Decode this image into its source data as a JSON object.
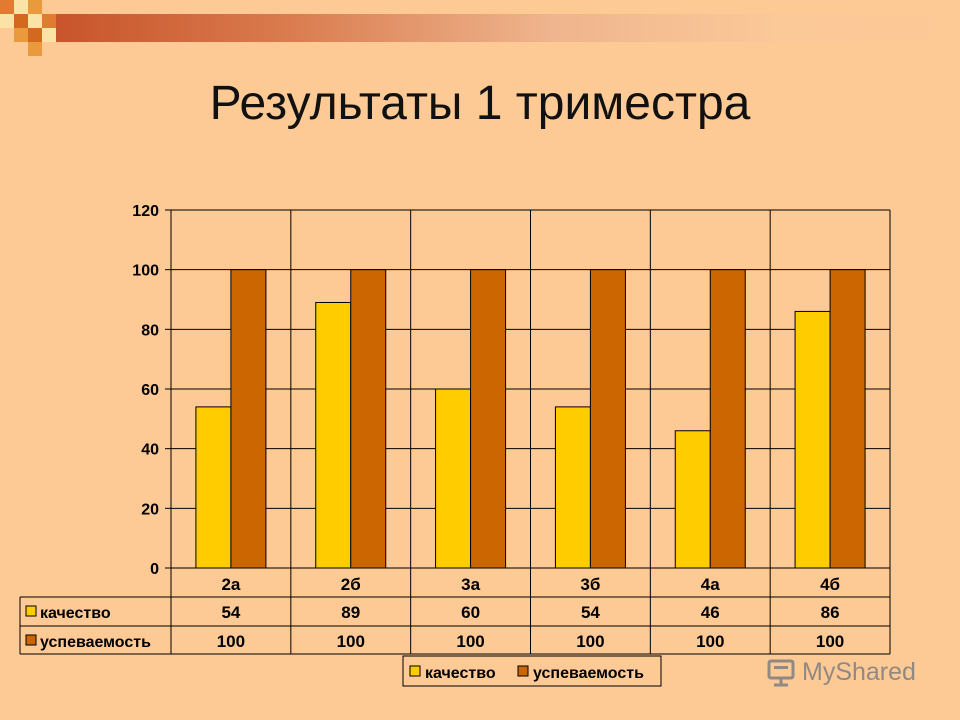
{
  "slide": {
    "title": "Результаты 1 триместра"
  },
  "chart_data": {
    "type": "bar",
    "categories": [
      "2а",
      "2б",
      "3а",
      "3б",
      "4а",
      "4б"
    ],
    "series": [
      {
        "name": "качество",
        "values": [
          54,
          89,
          60,
          54,
          46,
          86
        ],
        "color": "#ffcc00"
      },
      {
        "name": "успеваемость",
        "values": [
          100,
          100,
          100,
          100,
          100,
          100
        ],
        "color": "#cc6600"
      }
    ],
    "ylim": [
      0,
      120
    ],
    "yticks": [
      0,
      20,
      40,
      60,
      80,
      100,
      120
    ],
    "grid": true,
    "legend": "bottom",
    "data_table": true,
    "plot_bg": "#fdc995"
  },
  "watermark": {
    "text": "MyShared",
    "icon": "presentation-board-icon"
  }
}
